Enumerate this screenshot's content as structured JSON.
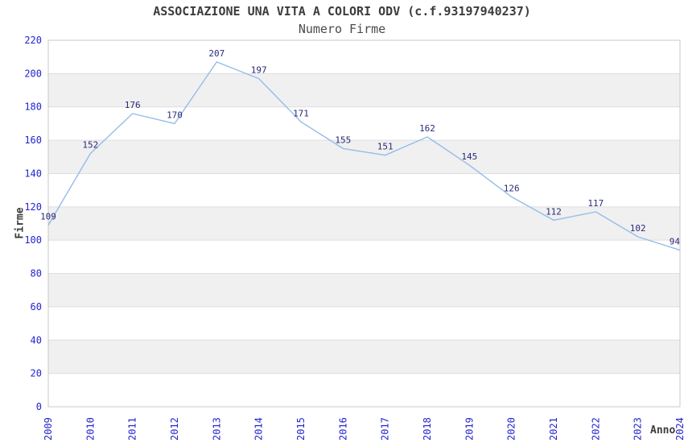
{
  "chart_data": {
    "type": "line",
    "title": "ASSOCIAZIONE UNA VITA A COLORI ODV (c.f.93197940237)",
    "subtitle": "Numero Firme",
    "xlabel": "Anno",
    "ylabel": "Firme",
    "x": [
      "2009",
      "2010",
      "2011",
      "2012",
      "2013",
      "2014",
      "2015",
      "2016",
      "2017",
      "2018",
      "2019",
      "2020",
      "2021",
      "2022",
      "2023",
      "2024"
    ],
    "values": [
      109,
      152,
      176,
      170,
      207,
      197,
      171,
      155,
      151,
      162,
      145,
      126,
      112,
      117,
      102,
      94
    ],
    "ylim": [
      0,
      220
    ],
    "ytick_step": 20,
    "yticks": [
      0,
      20,
      40,
      60,
      80,
      100,
      120,
      140,
      160,
      180,
      200,
      220
    ],
    "grid": "alternating-horizontal-bands",
    "legend": "none",
    "data_labels": true,
    "colors": {
      "line": "#94bce9",
      "data_label": "#29297a",
      "tick_label": "#2424ce",
      "band_gray": "#f0f0f0",
      "band_white": "#ffffff",
      "gridline": "#dedede",
      "frame": "#c9c9c9",
      "title_text": "#3c3c3c"
    }
  }
}
